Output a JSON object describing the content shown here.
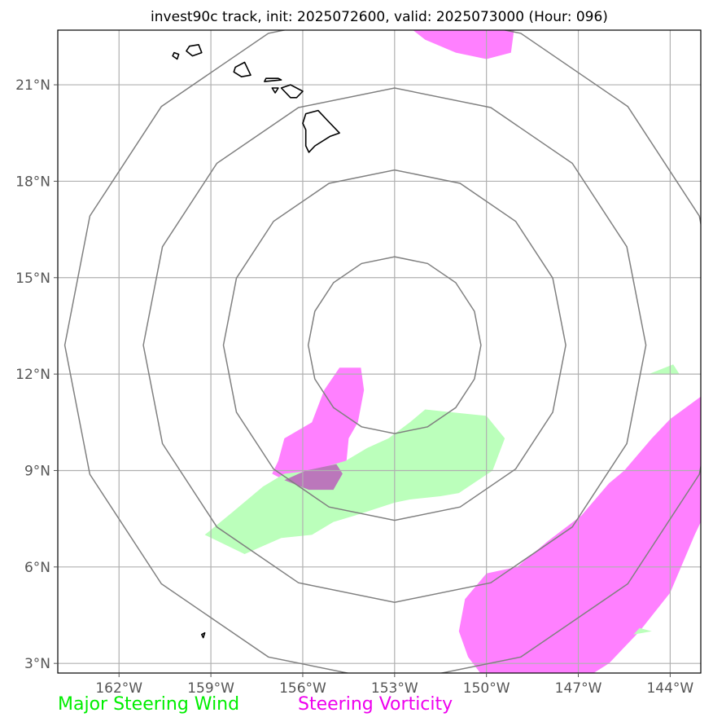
{
  "title": "invest90c track, init: 2025072600, valid: 2025073000 (Hour: 096)",
  "map": {
    "lon_range": [
      -164,
      -143
    ],
    "lat_range": [
      2.7,
      22.7
    ],
    "lon_ticks": [
      {
        "value": -162,
        "label": "162°W"
      },
      {
        "value": -159,
        "label": "159°W"
      },
      {
        "value": -156,
        "label": "156°W"
      },
      {
        "value": -153,
        "label": "153°W"
      },
      {
        "value": -150,
        "label": "150°W"
      },
      {
        "value": -147,
        "label": "147°W"
      },
      {
        "value": -144,
        "label": "144°W"
      }
    ],
    "lat_ticks": [
      {
        "value": 3,
        "label": "3°N"
      },
      {
        "value": 6,
        "label": "6°N"
      },
      {
        "value": 9,
        "label": "9°N"
      },
      {
        "value": 12,
        "label": "12°N"
      },
      {
        "value": 15,
        "label": "15°N"
      },
      {
        "value": 18,
        "label": "18°N"
      },
      {
        "value": 21,
        "label": "21°N"
      }
    ],
    "range_rings": {
      "center": [
        -153,
        12.9
      ],
      "radii_deg_lat": [
        2.75,
        5.45,
        8.0,
        10.5
      ]
    },
    "colors": {
      "gridline": "#b0b0b0",
      "ring": "#808080",
      "coastline": "#000000",
      "major_steering_wind": "#bbffbb",
      "steering_vorticity": "#ff80ff",
      "overlap": "#bb77bb"
    },
    "vorticity_areas": [
      [
        [
          -152.4,
          22.7
        ],
        [
          -149.1,
          22.7
        ],
        [
          -149.2,
          22.0
        ],
        [
          -150.0,
          21.8
        ],
        [
          -151.0,
          22.0
        ],
        [
          -152.0,
          22.4
        ]
      ],
      [
        [
          -154.8,
          12.2
        ],
        [
          -154.1,
          12.2
        ],
        [
          -154.0,
          11.5
        ],
        [
          -154.2,
          10.5
        ],
        [
          -154.5,
          10.0
        ],
        [
          -154.6,
          9.0
        ],
        [
          -154.9,
          8.4
        ],
        [
          -155.8,
          8.4
        ],
        [
          -156.6,
          8.7
        ],
        [
          -157.0,
          8.9
        ],
        [
          -156.8,
          9.3
        ],
        [
          -156.6,
          10.0
        ],
        [
          -155.7,
          10.5
        ],
        [
          -155.3,
          11.5
        ]
      ],
      [
        [
          -143.0,
          11.3
        ],
        [
          -143.0,
          7.4
        ],
        [
          -143.2,
          7.0
        ],
        [
          -144.0,
          5.2
        ],
        [
          -145.0,
          4.0
        ],
        [
          -146.0,
          3.0
        ],
        [
          -146.5,
          2.7
        ],
        [
          -150.2,
          2.7
        ],
        [
          -150.6,
          3.2
        ],
        [
          -150.9,
          4.0
        ],
        [
          -150.7,
          5.0
        ],
        [
          -150.0,
          5.8
        ],
        [
          -149.0,
          6.0
        ],
        [
          -148.0,
          6.8
        ],
        [
          -146.9,
          7.6
        ],
        [
          -146.0,
          8.6
        ],
        [
          -145.5,
          9.0
        ],
        [
          -144.6,
          10.0
        ],
        [
          -144.0,
          10.6
        ]
      ]
    ],
    "steering_wind_areas": [
      [
        [
          -152.0,
          10.9
        ],
        [
          -151.0,
          10.8
        ],
        [
          -150.0,
          10.7
        ],
        [
          -149.4,
          10.0
        ],
        [
          -149.8,
          9.0
        ],
        [
          -150.9,
          8.3
        ],
        [
          -151.5,
          8.2
        ],
        [
          -152.5,
          8.1
        ],
        [
          -153.0,
          8.0
        ],
        [
          -154.3,
          7.6
        ],
        [
          -155.0,
          7.4
        ],
        [
          -155.7,
          7.0
        ],
        [
          -156.7,
          6.9
        ],
        [
          -157.9,
          6.4
        ],
        [
          -159.2,
          7.0
        ],
        [
          -158.3,
          7.7
        ],
        [
          -157.3,
          8.5
        ],
        [
          -156.6,
          8.9
        ],
        [
          -155.7,
          9.0
        ],
        [
          -154.6,
          9.3
        ],
        [
          -153.9,
          9.7
        ],
        [
          -153.2,
          10.0
        ],
        [
          -152.5,
          10.5
        ]
      ],
      [
        [
          -144.7,
          12.0
        ],
        [
          -143.9,
          12.3
        ],
        [
          -143.7,
          12.0
        ]
      ],
      [
        [
          -145.2,
          3.9
        ],
        [
          -144.6,
          4.0
        ],
        [
          -145.0,
          4.1
        ]
      ]
    ],
    "overlap_areas": [
      [
        [
          -154.9,
          9.2
        ],
        [
          -154.7,
          8.9
        ],
        [
          -155.0,
          8.4
        ],
        [
          -155.8,
          8.4
        ],
        [
          -156.6,
          8.7
        ],
        [
          -155.9,
          9.0
        ]
      ]
    ],
    "coastlines": [
      [
        [
          -155.9,
          20.1
        ],
        [
          -155.5,
          20.2
        ],
        [
          -155.2,
          19.9
        ],
        [
          -154.8,
          19.5
        ],
        [
          -155.1,
          19.4
        ],
        [
          -155.6,
          19.1
        ],
        [
          -155.8,
          18.9
        ],
        [
          -155.9,
          19.1
        ],
        [
          -155.9,
          19.6
        ],
        [
          -156.0,
          19.8
        ]
      ],
      [
        [
          -156.7,
          20.9
        ],
        [
          -156.4,
          21.0
        ],
        [
          -156.0,
          20.8
        ],
        [
          -156.2,
          20.6
        ],
        [
          -156.4,
          20.6
        ],
        [
          -156.6,
          20.8
        ]
      ],
      [
        [
          -157.25,
          21.1
        ],
        [
          -156.7,
          21.15
        ],
        [
          -156.8,
          21.2
        ],
        [
          -157.2,
          21.2
        ]
      ],
      [
        [
          -157.0,
          20.9
        ],
        [
          -156.8,
          20.9
        ],
        [
          -156.9,
          20.75
        ]
      ],
      [
        [
          -158.2,
          21.55
        ],
        [
          -157.9,
          21.7
        ],
        [
          -157.7,
          21.3
        ],
        [
          -158.0,
          21.25
        ],
        [
          -158.25,
          21.4
        ]
      ],
      [
        [
          -159.7,
          22.2
        ],
        [
          -159.4,
          22.25
        ],
        [
          -159.3,
          22.0
        ],
        [
          -159.6,
          21.9
        ],
        [
          -159.8,
          22.05
        ]
      ],
      [
        [
          -160.2,
          22.0
        ],
        [
          -160.05,
          21.95
        ],
        [
          -160.1,
          21.8
        ],
        [
          -160.25,
          21.9
        ]
      ],
      [
        [
          -159.3,
          3.9
        ],
        [
          -159.2,
          3.95
        ],
        [
          -159.25,
          3.8
        ]
      ]
    ]
  },
  "legend": {
    "major_steering_wind": {
      "label": "Major Steering Wind",
      "color": "#00ee00"
    },
    "steering_vorticity": {
      "label": "Steering Vorticity",
      "color": "#ee00ee"
    }
  }
}
